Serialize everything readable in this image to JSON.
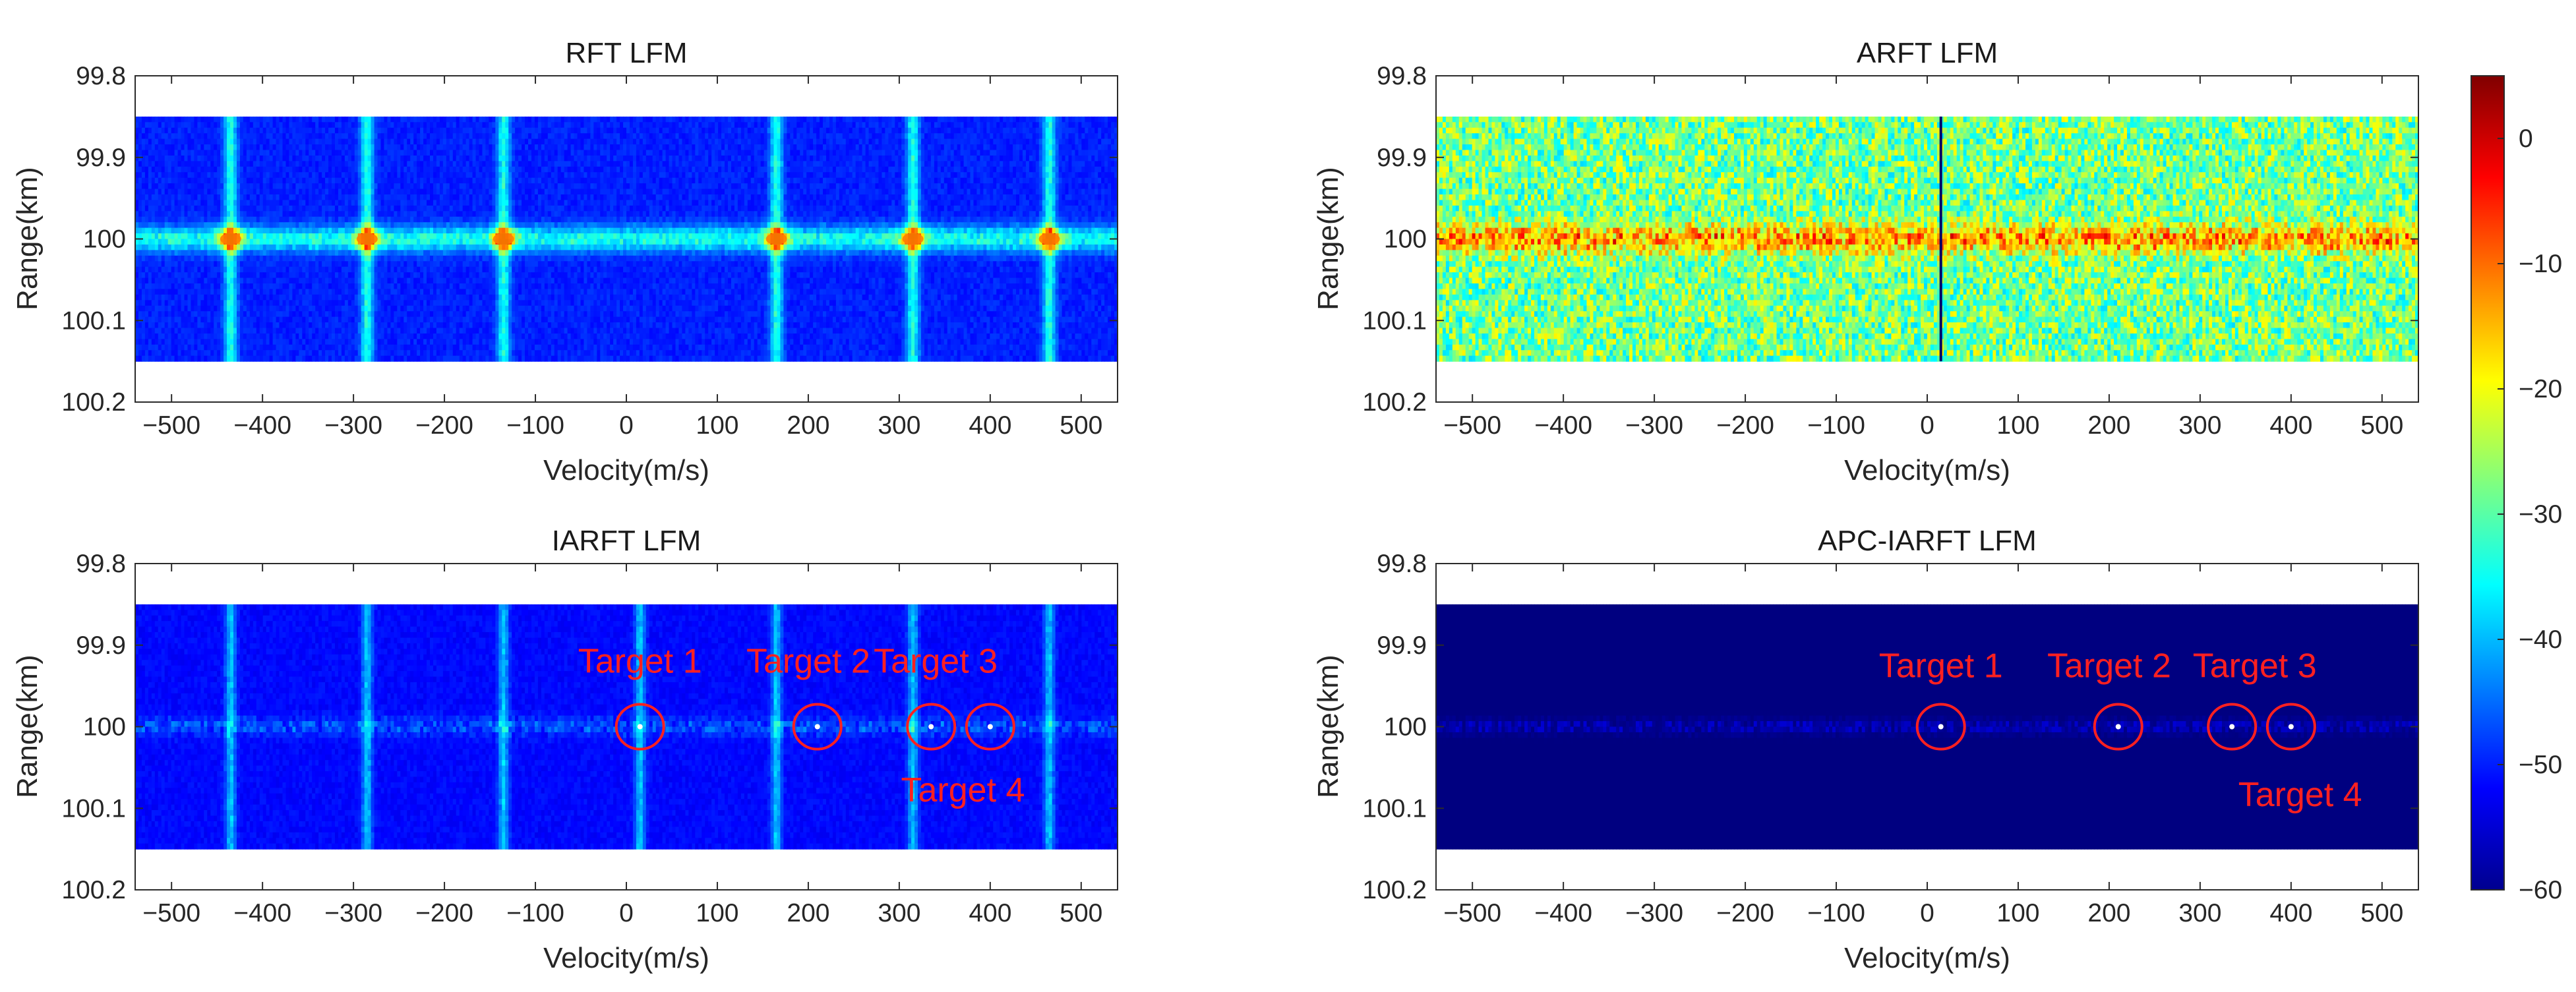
{
  "chart_data": {
    "panels": [
      {
        "type": "heatmap",
        "title": "RFT LFM",
        "xlabel": "Velocity(m/s)",
        "ylabel": "Range(km)",
        "xlim": [
          -540,
          540
        ],
        "ylim": [
          99.8,
          100.2
        ],
        "xticks": [
          "-500",
          "-400",
          "-300",
          "-200",
          "-100",
          "0",
          "100",
          "200",
          "300",
          "400",
          "500"
        ],
        "yticks": [
          "99.8",
          "99.9",
          "100",
          "100.1",
          "100.2"
        ],
        "data_range_km": [
          99.85,
          100.15
        ],
        "style": "rft",
        "blind_velocities": [
          -435,
          -285,
          -135,
          165,
          315,
          465
        ],
        "peak_velocities": [
          -435,
          -285,
          -135,
          165,
          315,
          465
        ],
        "annotations": []
      },
      {
        "type": "heatmap",
        "title": "ARFT LFM",
        "xlabel": "Velocity(m/s)",
        "ylabel": "Range(km)",
        "xlim": [
          -540,
          540
        ],
        "ylim": [
          99.8,
          100.2
        ],
        "xticks": [
          "-500",
          "-400",
          "-300",
          "-200",
          "-100",
          "0",
          "100",
          "200",
          "300",
          "400",
          "500"
        ],
        "yticks": [
          "99.8",
          "99.9",
          "100",
          "100.1",
          "100.2"
        ],
        "data_range_km": [
          99.85,
          100.15
        ],
        "style": "arft",
        "blind_velocities": [
          15
        ],
        "peak_velocities": [],
        "annotations": []
      },
      {
        "type": "heatmap",
        "title": "IARFT LFM",
        "xlabel": "Velocity(m/s)",
        "ylabel": "Range(km)",
        "xlim": [
          -540,
          540
        ],
        "ylim": [
          99.8,
          100.2
        ],
        "xticks": [
          "-500",
          "-400",
          "-300",
          "-200",
          "-100",
          "0",
          "100",
          "200",
          "300",
          "400",
          "500"
        ],
        "yticks": [
          "99.8",
          "99.9",
          "100",
          "100.1",
          "100.2"
        ],
        "data_range_km": [
          99.85,
          100.15
        ],
        "style": "iarft",
        "blind_velocities": [
          -435,
          -285,
          -135,
          15,
          165,
          315,
          465
        ],
        "peak_velocities": [
          15,
          210,
          335,
          400
        ],
        "annotations": [
          {
            "label": "Target 1",
            "velocity": 15,
            "range": 100.0,
            "label_velocity": 15,
            "label_range": 99.919
          },
          {
            "label": "Target 2",
            "velocity": 210,
            "range": 100.0,
            "label_velocity": 200,
            "label_range": 99.919
          },
          {
            "label": "Target 3",
            "velocity": 335,
            "range": 100.0,
            "label_velocity": 340,
            "label_range": 99.919
          },
          {
            "label": "Target 4",
            "velocity": 400,
            "range": 100.0,
            "label_velocity": 370,
            "label_range": 100.077
          }
        ]
      },
      {
        "type": "heatmap",
        "title": "APC-IARFT LFM",
        "xlabel": "Velocity(m/s)",
        "ylabel": "Range(km)",
        "xlim": [
          -540,
          540
        ],
        "ylim": [
          99.8,
          100.2
        ],
        "xticks": [
          "-500",
          "-400",
          "-300",
          "-200",
          "-100",
          "0",
          "100",
          "200",
          "300",
          "400",
          "500"
        ],
        "yticks": [
          "99.8",
          "99.9",
          "100",
          "100.1",
          "100.2"
        ],
        "data_range_km": [
          99.85,
          100.15
        ],
        "style": "apc",
        "blind_velocities": [],
        "peak_velocities": [
          15,
          210,
          335,
          400
        ],
        "annotations": [
          {
            "label": "Target 1",
            "velocity": 15,
            "range": 100.0,
            "label_velocity": 15,
            "label_range": 99.925
          },
          {
            "label": "Target 2",
            "velocity": 210,
            "range": 100.0,
            "label_velocity": 200,
            "label_range": 99.925
          },
          {
            "label": "Target 3",
            "velocity": 335,
            "range": 100.0,
            "label_velocity": 360,
            "label_range": 99.925
          },
          {
            "label": "Target 4",
            "velocity": 400,
            "range": 100.0,
            "label_velocity": 410,
            "label_range": 100.083
          }
        ]
      }
    ],
    "colorbar": {
      "colormap": "jet",
      "range": [
        -60,
        5
      ],
      "ticks": [
        "0",
        "-10",
        "-20",
        "-30",
        "-40",
        "-50",
        "-60"
      ],
      "tick_values": [
        0,
        -10,
        -20,
        -30,
        -40,
        -50,
        -60
      ]
    }
  },
  "colors": {
    "annotation": "#ff2020",
    "background_low": "#00008f"
  }
}
